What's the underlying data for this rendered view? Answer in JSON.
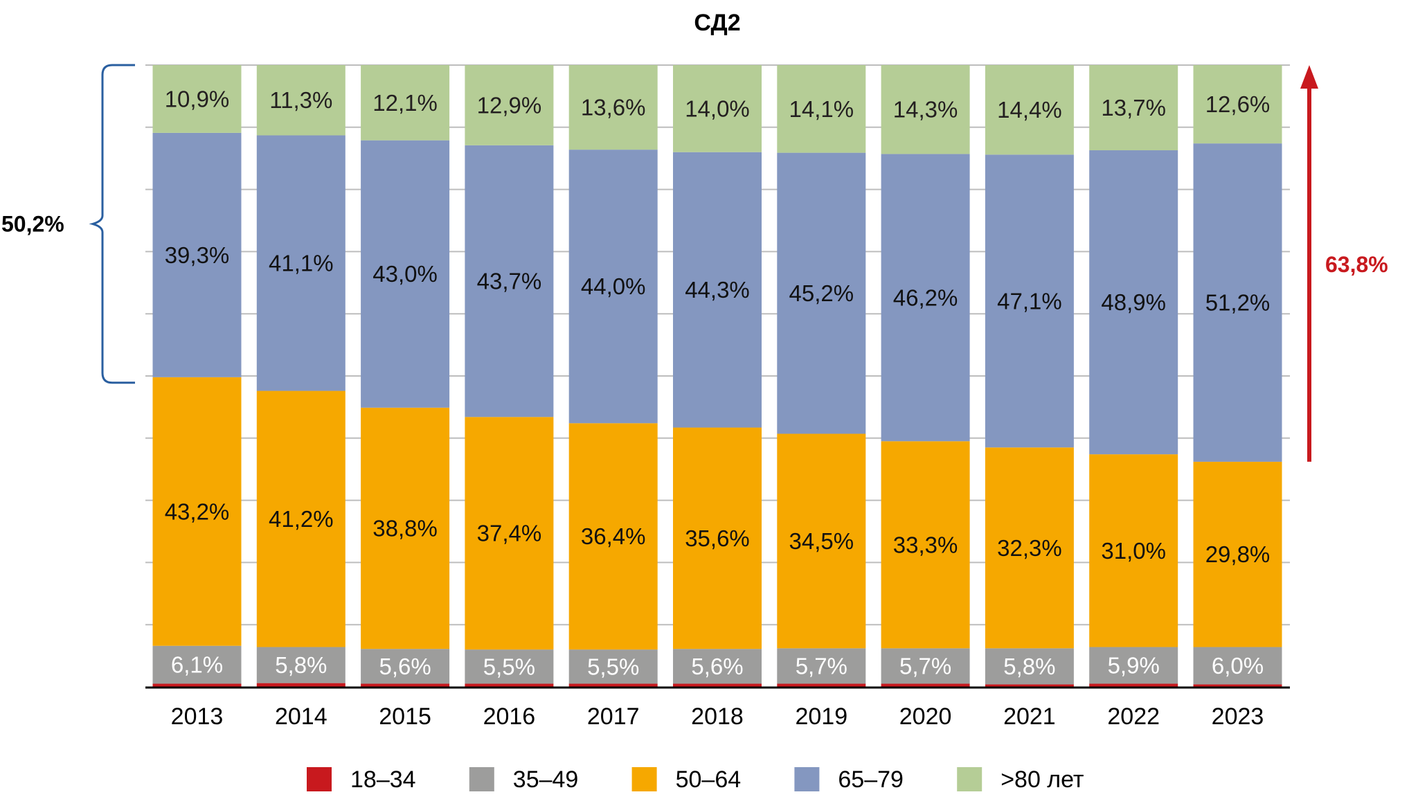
{
  "chart_data": {
    "type": "bar",
    "stacked": true,
    "normalized_percent": true,
    "title": "СД2",
    "xlabel": "",
    "ylabel": "",
    "ylim": [
      0,
      100
    ],
    "grid": true,
    "y_ticks": [
      0,
      10,
      20,
      30,
      40,
      50,
      60,
      70,
      80,
      90,
      100
    ],
    "y_tick_labels_visible": false,
    "legend_position": "bottom",
    "categories": [
      "2013",
      "2014",
      "2015",
      "2016",
      "2017",
      "2018",
      "2019",
      "2020",
      "2021",
      "2022",
      "2023"
    ],
    "series": [
      {
        "name": "18–34",
        "color": "#c8191e",
        "label_visible": false,
        "label_color": "#ffffff",
        "values": [
          0.5,
          0.6,
          0.5,
          0.5,
          0.5,
          0.5,
          0.5,
          0.5,
          0.4,
          0.5,
          0.4
        ]
      },
      {
        "name": "35–49",
        "color": "#9d9d9c",
        "label_visible": true,
        "label_color": "#ffffff",
        "values": [
          6.1,
          5.8,
          5.6,
          5.5,
          5.5,
          5.6,
          5.7,
          5.7,
          5.8,
          5.9,
          6.0
        ],
        "labels": [
          "6,1%",
          "5,8%",
          "5,6%",
          "5,5%",
          "5,5%",
          "5,6%",
          "5,7%",
          "5,7%",
          "5,8%",
          "5,9%",
          "6,0%"
        ]
      },
      {
        "name": "50–64",
        "color": "#f6a800",
        "label_visible": true,
        "label_color": "#111111",
        "values": [
          43.2,
          41.2,
          38.8,
          37.4,
          36.4,
          35.6,
          34.5,
          33.3,
          32.3,
          31.0,
          29.8
        ],
        "labels": [
          "43,2%",
          "41,2%",
          "38,8%",
          "37,4%",
          "36,4%",
          "35,6%",
          "34,5%",
          "33,3%",
          "32,3%",
          "31,0%",
          "29,8%"
        ]
      },
      {
        "name": "65–79",
        "color": "#8497c0",
        "label_visible": true,
        "label_color": "#111111",
        "values": [
          39.3,
          41.1,
          43.0,
          43.7,
          44.0,
          44.3,
          45.2,
          46.2,
          47.1,
          48.9,
          51.2
        ],
        "labels": [
          "39,3%",
          "41,1%",
          "43,0%",
          "43,7%",
          "44,0%",
          "44,3%",
          "45,2%",
          "46,2%",
          "47,1%",
          "48,9%",
          "51,2%"
        ]
      },
      {
        "name": ">80 лет",
        "color": "#b5cd96",
        "label_visible": true,
        "label_color": "#231f20",
        "values": [
          10.9,
          11.3,
          12.1,
          12.9,
          13.6,
          14.0,
          14.1,
          14.3,
          14.4,
          13.7,
          12.6
        ],
        "labels": [
          "10,9%",
          "11,3%",
          "12,1%",
          "12,9%",
          "13,6%",
          "14,0%",
          "14,1%",
          "14,3%",
          "14,4%",
          "13,7%",
          "12,6%"
        ]
      }
    ],
    "annotations": [
      {
        "type": "brace",
        "side": "left",
        "category": "2013",
        "spans_series": [
          "65–79",
          ">80 лет"
        ],
        "text": "50,2%",
        "color": "#2a5fa0",
        "text_color": "#000000"
      },
      {
        "type": "arrow-up",
        "side": "right",
        "category": "2023",
        "spans_series": [
          "65–79",
          ">80 лет"
        ],
        "text": "63,8%",
        "color": "#c8191e",
        "text_color": "#c8191e"
      }
    ],
    "colors": {
      "gridline": "#bdbdbd",
      "axis": "#000000"
    }
  }
}
